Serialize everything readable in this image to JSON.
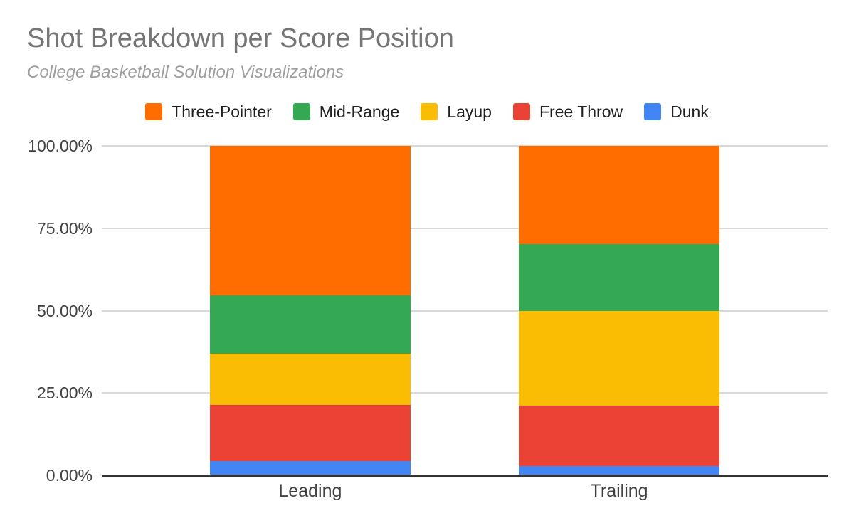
{
  "header": {
    "title": "Shot Breakdown per Score Position",
    "subtitle": "College Basketball Solution Visualizations"
  },
  "chart_data": {
    "type": "bar",
    "variant": "stacked-100-percent-column",
    "title": "Shot Breakdown per Score Position",
    "subtitle": "College Basketball Solution Visualizations",
    "categories": [
      "Leading",
      "Trailing"
    ],
    "series": [
      {
        "name": "Three-Pointer",
        "color": "#FF6D01",
        "values": [
          45.4,
          29.9
        ]
      },
      {
        "name": "Mid-Range",
        "color": "#34A853",
        "values": [
          17.6,
          20.3
        ]
      },
      {
        "name": "Layup",
        "color": "#FBBC04",
        "values": [
          15.7,
          28.6
        ]
      },
      {
        "name": "Free Throw",
        "color": "#EA4335",
        "values": [
          17.0,
          18.5
        ]
      },
      {
        "name": "Dunk",
        "color": "#4285F4",
        "values": [
          4.3,
          2.7
        ]
      }
    ],
    "stack_order_top_to_bottom": [
      "Three-Pointer",
      "Mid-Range",
      "Layup",
      "Free Throw",
      "Dunk"
    ],
    "y_axis": {
      "range": [
        0,
        100
      ],
      "ticks": [
        {
          "label": "100.00%",
          "value": 100
        },
        {
          "label": "75.00%",
          "value": 75
        },
        {
          "label": "50.00%",
          "value": 50
        },
        {
          "label": "25.00%",
          "value": 25
        },
        {
          "label": "0.00%",
          "value": 0
        }
      ]
    },
    "legend_position": "top",
    "grid": true,
    "colors": {
      "title_text": "#757575",
      "subtitle_text": "#9e9e9e",
      "legend_text": "#212121",
      "axis_text": "#424242",
      "gridline": "#d9d9d9",
      "axis_line": "#333333",
      "background": "#ffffff"
    }
  }
}
